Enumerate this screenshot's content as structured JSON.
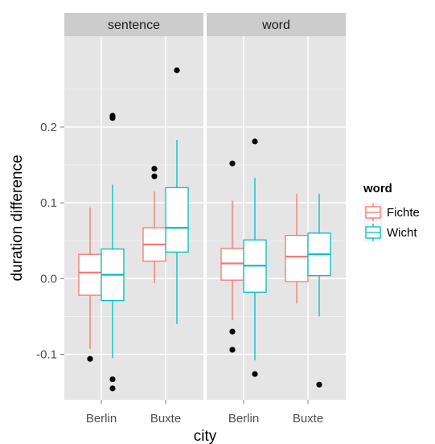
{
  "chart_data": {
    "type": "boxplot",
    "xlabel": "city",
    "ylabel": "duration difference",
    "ylim": [
      -0.16,
      0.32
    ],
    "yticks": [
      -0.1,
      0.0,
      0.1,
      0.2
    ],
    "ytick_labels": [
      "-0.1",
      "0.0",
      "0.1",
      "0.2"
    ],
    "categories": [
      "Berlin",
      "Buxte"
    ],
    "legend": {
      "title": "word",
      "placement": "right",
      "entries": [
        {
          "name": "Fichte",
          "color": "#F8766D"
        },
        {
          "name": "Wicht",
          "color": "#00BFC4"
        }
      ]
    },
    "panels": [
      {
        "label": "sentence",
        "boxes": [
          {
            "category": "Berlin",
            "series": "Fichte",
            "min": -0.093,
            "q1": -0.022,
            "median": 0.008,
            "q3": 0.032,
            "max": 0.094,
            "outliers": [
              -0.106
            ]
          },
          {
            "category": "Berlin",
            "series": "Wicht",
            "min": -0.105,
            "q1": -0.029,
            "median": 0.005,
            "q3": 0.039,
            "max": 0.124,
            "outliers": [
              0.212,
              0.215,
              -0.133,
              -0.145
            ]
          },
          {
            "category": "Buxte",
            "series": "Fichte",
            "min": -0.006,
            "q1": 0.023,
            "median": 0.045,
            "q3": 0.067,
            "max": 0.115,
            "outliers": [
              0.135,
              0.145
            ]
          },
          {
            "category": "Buxte",
            "series": "Wicht",
            "min": -0.06,
            "q1": 0.035,
            "median": 0.067,
            "q3": 0.12,
            "max": 0.183,
            "outliers": [
              0.275
            ]
          }
        ]
      },
      {
        "label": "word",
        "boxes": [
          {
            "category": "Berlin",
            "series": "Fichte",
            "min": -0.055,
            "q1": -0.002,
            "median": 0.02,
            "q3": 0.04,
            "max": 0.103,
            "outliers": [
              0.152,
              -0.07,
              -0.094
            ]
          },
          {
            "category": "Berlin",
            "series": "Wicht",
            "min": -0.108,
            "q1": -0.018,
            "median": 0.017,
            "q3": 0.051,
            "max": 0.133,
            "outliers": [
              0.181,
              -0.126
            ]
          },
          {
            "category": "Buxte",
            "series": "Fichte",
            "min": -0.033,
            "q1": -0.004,
            "median": 0.029,
            "q3": 0.057,
            "max": 0.112,
            "outliers": []
          },
          {
            "category": "Buxte",
            "series": "Wicht",
            "min": -0.05,
            "q1": 0.004,
            "median": 0.032,
            "q3": 0.06,
            "max": 0.112,
            "outliers": [
              -0.14
            ]
          }
        ]
      }
    ],
    "grid": true
  },
  "colors": {
    "panel_background": "#E5E5E5",
    "strip_background": "#CCCCCC",
    "major_grid": "#FFFFFF",
    "minor_grid": "#F2F2F2",
    "outlier": "#000000"
  }
}
